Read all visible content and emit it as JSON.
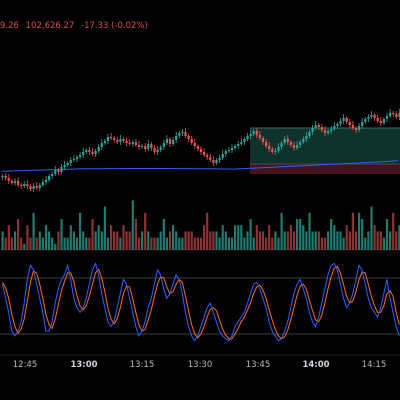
{
  "header": {
    "price_fragment": "9.26",
    "close_value": "102,626.27",
    "change": "-17.33 (-0.02%)"
  },
  "colors": {
    "bg": "#000000",
    "up": "#26a69a",
    "down": "#ef5350",
    "upVol": "#1f7a70",
    "downVol": "#8f3232",
    "ma": "#2962ff",
    "stochK": "#2962ff",
    "stochD": "#ff6d00",
    "grid": "#1c1f26"
  },
  "time_axis": {
    "labels": [
      {
        "text": "12:45",
        "bold": false
      },
      {
        "text": "13:00",
        "bold": true
      },
      {
        "text": "13:15",
        "bold": false
      },
      {
        "text": "13:30",
        "bold": false
      },
      {
        "text": "13:45",
        "bold": false
      },
      {
        "text": "14:00",
        "bold": true
      },
      {
        "text": "14:15",
        "bold": false
      }
    ]
  },
  "chart_data": {
    "type": "candlestick",
    "closes": [
      176,
      178,
      181,
      183,
      181,
      185,
      186,
      184,
      186,
      189,
      186,
      188,
      185,
      182,
      180,
      176,
      174,
      170,
      172,
      167,
      165,
      163,
      160,
      159,
      157,
      155,
      152,
      150,
      152,
      154,
      151,
      147,
      143,
      141,
      137,
      138,
      140,
      142,
      139,
      141,
      143,
      144,
      142,
      145,
      147,
      146,
      149,
      144,
      148,
      152,
      150,
      147,
      143,
      139,
      144,
      140,
      136,
      133,
      132,
      136,
      139,
      143,
      146,
      149,
      152,
      155,
      157,
      160,
      163,
      160,
      158,
      154,
      151,
      150,
      148,
      146,
      144,
      142,
      139,
      136,
      134,
      131,
      135,
      138,
      142,
      146,
      149,
      152,
      151,
      147,
      143,
      139,
      142,
      145,
      148,
      145,
      142,
      139,
      136,
      132,
      128,
      125,
      127,
      130,
      133,
      131,
      129,
      126,
      124,
      121,
      118,
      122,
      125,
      128,
      130,
      126,
      122,
      119,
      117,
      115,
      118,
      121,
      123,
      119,
      116,
      113,
      114,
      117,
      113
    ],
    "volume": [
      3,
      2,
      4,
      2,
      3,
      5,
      2,
      1,
      4,
      2,
      6,
      2,
      3,
      2,
      4,
      3,
      2,
      1,
      3,
      5,
      2,
      2,
      4,
      3,
      2,
      6,
      3,
      2,
      2,
      5,
      3,
      4,
      3,
      7,
      2,
      4,
      3,
      3,
      2,
      4,
      3,
      3,
      8,
      5,
      2,
      3,
      6,
      3,
      2,
      2,
      2,
      3,
      5,
      2,
      3,
      4,
      3,
      2,
      2,
      3,
      3,
      3,
      2,
      2,
      2,
      4,
      6,
      3,
      3,
      3,
      2,
      4,
      3,
      2,
      2,
      4,
      4,
      4,
      2,
      3,
      5,
      2,
      4,
      3,
      3,
      2,
      4,
      2,
      3,
      2,
      6,
      3,
      3,
      4,
      3,
      5,
      5,
      4,
      3,
      6,
      3,
      3,
      3,
      2,
      2,
      3,
      5,
      4,
      3,
      3,
      2,
      4,
      3,
      6,
      3,
      6,
      5,
      2,
      3,
      7,
      4,
      3,
      3,
      2,
      5,
      3,
      6,
      3,
      4
    ],
    "stoch_k": [
      70,
      55,
      40,
      20,
      15,
      20,
      30,
      50,
      75,
      90,
      85,
      70,
      55,
      40,
      20,
      20,
      30,
      50,
      65,
      75,
      80,
      90,
      75,
      55,
      45,
      40,
      45,
      55,
      70,
      85,
      92,
      80,
      60,
      45,
      30,
      25,
      30,
      45,
      60,
      75,
      70,
      55,
      40,
      25,
      15,
      20,
      30,
      45,
      55,
      70,
      85,
      80,
      65,
      55,
      60,
      70,
      80,
      75,
      60,
      40,
      25,
      15,
      10,
      15,
      25,
      35,
      45,
      50,
      40,
      30,
      20,
      15,
      12,
      10,
      15,
      25,
      30,
      35,
      40,
      50,
      60,
      70,
      72,
      65,
      55,
      45,
      30,
      20,
      15,
      10,
      12,
      20,
      30,
      45,
      60,
      70,
      75,
      65,
      55,
      40,
      30,
      25,
      35,
      50,
      65,
      80,
      90,
      92,
      85,
      70,
      55,
      45,
      50,
      60,
      75,
      90,
      85,
      70,
      55,
      45,
      40,
      35,
      45,
      60,
      75,
      55,
      40,
      25,
      15
    ],
    "stoch_d": [
      72,
      66,
      55,
      38,
      25,
      18,
      22,
      33,
      52,
      72,
      84,
      82,
      70,
      55,
      38,
      27,
      23,
      33,
      48,
      63,
      73,
      82,
      82,
      73,
      58,
      47,
      43,
      47,
      57,
      70,
      82,
      86,
      77,
      62,
      45,
      33,
      28,
      33,
      45,
      60,
      68,
      67,
      55,
      40,
      27,
      20,
      22,
      32,
      43,
      57,
      70,
      78,
      77,
      67,
      60,
      62,
      70,
      75,
      72,
      58,
      42,
      27,
      17,
      13,
      17,
      25,
      35,
      43,
      45,
      42,
      32,
      22,
      16,
      12,
      12,
      17,
      23,
      30,
      35,
      42,
      50,
      60,
      67,
      69,
      64,
      55,
      43,
      32,
      22,
      15,
      12,
      14,
      21,
      32,
      45,
      58,
      68,
      70,
      65,
      53,
      42,
      32,
      30,
      37,
      50,
      65,
      78,
      87,
      89,
      82,
      70,
      57,
      50,
      52,
      62,
      75,
      83,
      82,
      70,
      57,
      47,
      40,
      40,
      47,
      60,
      63,
      57,
      40,
      27
    ]
  }
}
